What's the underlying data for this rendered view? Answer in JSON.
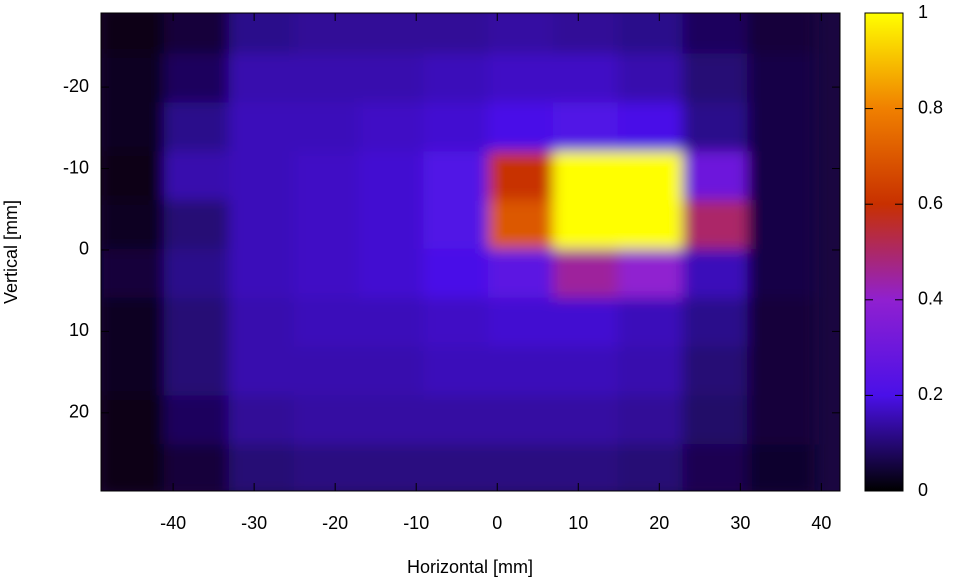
{
  "chart_data": {
    "type": "heatmap",
    "xlabel": "Horizontal [mm]",
    "ylabel": "Vertical [mm]",
    "xlim": [
      -48.9,
      42.3
    ],
    "xticks": [
      -40,
      -30,
      -20,
      -10,
      0,
      10,
      20,
      30,
      40
    ],
    "ylim": [
      -29.1,
      29.6
    ],
    "yticks": [
      -20,
      -10,
      0,
      10,
      20
    ],
    "y_inverted": true,
    "x": [
      -45,
      -37,
      -29,
      -21,
      -13,
      -5,
      3,
      11,
      19,
      27,
      35
    ],
    "y": [
      -27,
      -21,
      -15,
      -9,
      -3,
      3,
      9,
      15,
      21,
      27
    ],
    "z": [
      [
        0.02,
        0.05,
        0.12,
        0.13,
        0.13,
        0.13,
        0.14,
        0.13,
        0.12,
        0.08,
        0.05
      ],
      [
        0.03,
        0.08,
        0.15,
        0.15,
        0.15,
        0.16,
        0.17,
        0.17,
        0.15,
        0.1,
        0.06
      ],
      [
        0.03,
        0.12,
        0.16,
        0.16,
        0.17,
        0.18,
        0.2,
        0.22,
        0.2,
        0.12,
        0.06
      ],
      [
        0.02,
        0.15,
        0.16,
        0.17,
        0.18,
        0.22,
        0.6,
        1,
        1,
        0.3,
        0.06
      ],
      [
        0.03,
        0.1,
        0.16,
        0.17,
        0.18,
        0.22,
        0.7,
        1,
        1,
        0.5,
        0.06
      ],
      [
        0.05,
        0.12,
        0.16,
        0.17,
        0.18,
        0.2,
        0.25,
        0.45,
        0.4,
        0.16,
        0.06
      ],
      [
        0.03,
        0.1,
        0.15,
        0.16,
        0.16,
        0.17,
        0.18,
        0.18,
        0.16,
        0.12,
        0.05
      ],
      [
        0.03,
        0.1,
        0.15,
        0.15,
        0.15,
        0.16,
        0.16,
        0.16,
        0.15,
        0.1,
        0.05
      ],
      [
        0.02,
        0.08,
        0.13,
        0.14,
        0.14,
        0.14,
        0.14,
        0.14,
        0.13,
        0.09,
        0.05
      ],
      [
        0.02,
        0.05,
        0.1,
        0.11,
        0.11,
        0.11,
        0.11,
        0.11,
        0.1,
        0.07,
        0.04
      ]
    ],
    "colorbar_lim": [
      0,
      1
    ],
    "colorbar_ticks": [
      0,
      0.2,
      0.4,
      0.6,
      0.8,
      1
    ],
    "colormap": [
      "#000000",
      "#4a10e8",
      "#9020d0",
      "#c83000",
      "#f08000",
      "#ffff00"
    ]
  }
}
